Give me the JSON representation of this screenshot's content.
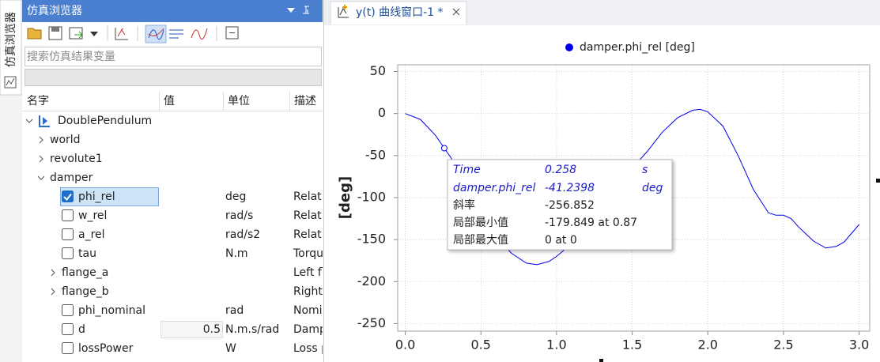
{
  "sidebar_tab": "仿真浏览器",
  "browser": {
    "title": "仿真浏览器",
    "search_placeholder": "搜索仿真结果变量",
    "columns": [
      "名字",
      "值",
      "单位",
      "描述"
    ],
    "rows": [
      {
        "name": "DoublePendulum"
      },
      {
        "name": "world"
      },
      {
        "name": "revolute1"
      },
      {
        "name": "damper"
      },
      {
        "name": "phi_rel",
        "unit": "deg",
        "description": "Relati",
        "checked": true
      },
      {
        "name": "w_rel",
        "unit": "rad/s",
        "description": "Relati",
        "checked": false
      },
      {
        "name": "a_rel",
        "unit": "rad/s2",
        "description": "Relati",
        "checked": false
      },
      {
        "name": "tau",
        "unit": "N.m",
        "description": "Torqu",
        "checked": false
      },
      {
        "name": "flange_a",
        "description": "Left fl"
      },
      {
        "name": "flange_b",
        "description": "Right"
      },
      {
        "name": "phi_nominal",
        "unit": "rad",
        "description": "Nomi",
        "checked": false
      },
      {
        "name": "d",
        "value": 0.5,
        "unit": "N.m.s/rad",
        "description": "Damp",
        "checked": false
      },
      {
        "name": "lossPower",
        "unit": "W",
        "description": "Loss p",
        "checked": false
      }
    ]
  },
  "plot_window": {
    "tab_title": "y(t) 曲线窗口-1 *"
  },
  "chart_data": {
    "type": "line",
    "ylabel": "[deg]",
    "x": [
      0,
      0.1,
      0.2,
      0.258,
      0.3,
      0.4,
      0.5,
      0.6,
      0.7,
      0.8,
      0.87,
      0.95,
      1.0,
      1.1,
      1.2,
      1.3,
      1.4,
      1.5,
      1.6,
      1.7,
      1.8,
      1.9,
      1.95,
      2.0,
      2.1,
      2.2,
      2.3,
      2.4,
      2.45,
      2.5,
      2.55,
      2.6,
      2.7,
      2.78,
      2.85,
      2.9,
      3.0
    ],
    "series": [
      {
        "name": "damper.phi_rel [deg]",
        "color": "#0000ee",
        "values": [
          0,
          -7,
          -26,
          -41.2398,
          -52,
          -85,
          -115,
          -145,
          -166,
          -178,
          -179.849,
          -176,
          -170,
          -155,
          -135,
          -112,
          -88,
          -65,
          -45,
          -22,
          -5,
          4,
          5,
          2,
          -15,
          -50,
          -90,
          -118,
          -121,
          -121,
          -125,
          -135,
          -152,
          -160,
          -158,
          -153,
          -132
        ]
      }
    ],
    "xlim": [
      -0.05,
      3.07
    ],
    "ylim": [
      -259,
      58
    ],
    "xticks": [
      {
        "value": 0,
        "label": "0.0"
      },
      0.5,
      {
        "value": 1,
        "label": "1.0"
      },
      1.5,
      {
        "value": 2,
        "label": "2.0"
      },
      2.5,
      {
        "value": 3,
        "label": "3.0"
      }
    ],
    "yticks": [
      50,
      0,
      -50,
      -100,
      -150,
      -200,
      -250
    ],
    "grid": true,
    "legend": "top",
    "tooltip": {
      "rows": [
        [
          "Time",
          0.258,
          "s"
        ],
        [
          "damper.phi_rel",
          -41.2398,
          "deg"
        ],
        [
          "斜率",
          -256.852
        ],
        [
          "局部最小值",
          "-179.849 at 0.87"
        ],
        [
          "局部最大值",
          "0 at 0"
        ]
      ]
    }
  }
}
